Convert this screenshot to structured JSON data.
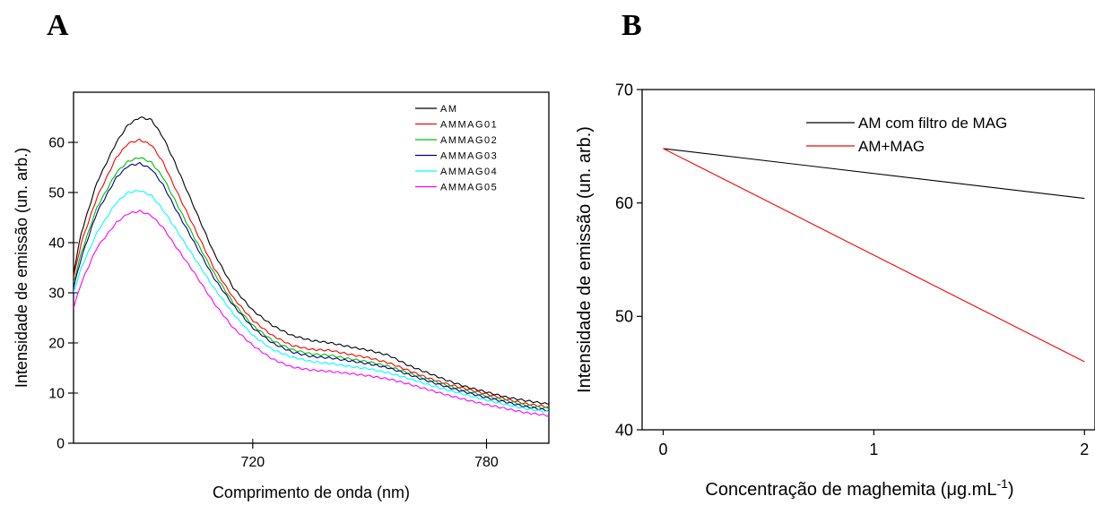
{
  "panels": {
    "a": "A",
    "b": "B"
  },
  "chart_data": [
    {
      "type": "line",
      "xlabel": "Comprimento de onda (nm)",
      "ylabel": "Intensidade de emissão (un. arb.)",
      "xlim": [
        674,
        796
      ],
      "ylim": [
        0,
        70
      ],
      "x_ticks": [
        720,
        780
      ],
      "y_ticks": [
        0,
        10,
        20,
        30,
        40,
        50,
        60
      ],
      "legend_position": "top-right",
      "x": [
        674,
        676,
        680,
        685,
        688,
        691,
        694,
        697,
        700,
        705,
        710,
        715,
        720,
        725,
        730,
        735,
        740,
        745,
        750,
        755,
        760,
        765,
        770,
        775,
        780,
        785,
        790,
        796
      ],
      "series": [
        {
          "name": "AM",
          "color": "#000000",
          "values": [
            34,
            42,
            52,
            60,
            63.5,
            65,
            64.5,
            61,
            56,
            47,
            38,
            31,
            26.5,
            23.5,
            21.5,
            20.5,
            20,
            19.2,
            18.5,
            17.5,
            15.5,
            14,
            12.5,
            11.2,
            10.2,
            9.2,
            8.5,
            7.8
          ]
        },
        {
          "name": "AMMAG01",
          "color": "#ff0000",
          "values": [
            33,
            40,
            49,
            57,
            59.8,
            60.5,
            59.5,
            56,
            51,
            43,
            35,
            29,
            24.5,
            21.5,
            19.5,
            18.7,
            18.5,
            17.7,
            17,
            16,
            14.5,
            13,
            11.8,
            10.8,
            9.8,
            8.8,
            7.9,
            7.2
          ]
        },
        {
          "name": "AMMAG02",
          "color": "#00c000",
          "values": [
            32,
            38,
            47,
            54,
            56.2,
            57,
            56,
            53,
            48.5,
            41,
            34,
            28,
            23.5,
            20.5,
            18.7,
            17.8,
            17.5,
            16.8,
            16.2,
            15.3,
            14,
            12.7,
            11.5,
            10.4,
            9.4,
            8.5,
            7.6,
            6.9
          ]
        },
        {
          "name": "AMMAG03",
          "color": "#00008b",
          "values": [
            31,
            37,
            46,
            53,
            55.3,
            55.8,
            54.7,
            51.5,
            47,
            40,
            33,
            27.5,
            23,
            20,
            18.2,
            17.3,
            17,
            16.4,
            15.8,
            15,
            13.7,
            12.4,
            11.2,
            10.1,
            9.1,
            8.2,
            7.3,
            6.5
          ]
        },
        {
          "name": "AMMAG04",
          "color": "#00ffff",
          "values": [
            30,
            35,
            42,
            48,
            50,
            50.4,
            49.4,
            46.5,
            43,
            37,
            31,
            25.8,
            21.5,
            18.7,
            17.2,
            16.3,
            15.9,
            15.3,
            14.8,
            14,
            12.9,
            11.7,
            10.6,
            9.6,
            8.6,
            7.7,
            6.9,
            6.2
          ]
        },
        {
          "name": "AMMAG05",
          "color": "#ff00ff",
          "values": [
            27,
            32,
            39,
            44,
            45.8,
            46.3,
            45.4,
            43,
            39.5,
            34,
            28,
            23,
            19.5,
            16.8,
            15.2,
            14.6,
            14.3,
            13.9,
            13.4,
            12.8,
            11.8,
            10.7,
            9.6,
            8.6,
            7.7,
            6.9,
            6.1,
            5.5
          ]
        }
      ]
    },
    {
      "type": "line",
      "xlabel": "Concentração de maghemita (μg.mL⁻¹)",
      "ylabel": "Intensidade de emissão (un. arb.)",
      "xlim": [
        -0.1,
        2.05
      ],
      "ylim": [
        40,
        70
      ],
      "x_ticks": [
        0,
        1,
        2
      ],
      "y_ticks": [
        40,
        50,
        60,
        70
      ],
      "legend_position": "top-right",
      "x": [
        0,
        2
      ],
      "series": [
        {
          "name": "AM com filtro de MAG",
          "color": "#000000",
          "values": [
            64.8,
            60.4
          ]
        },
        {
          "name": "AM+MAG",
          "color": "#ff0000",
          "values": [
            64.8,
            46.0
          ]
        }
      ]
    }
  ]
}
